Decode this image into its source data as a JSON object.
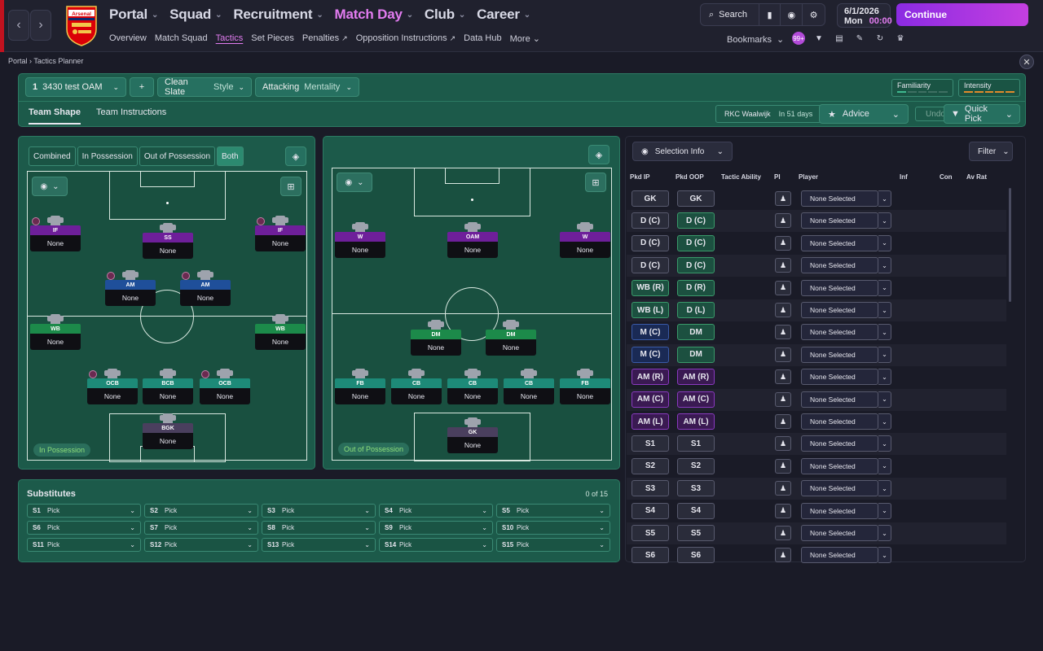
{
  "topbar": {
    "nav_back": "‹",
    "nav_forward": "›",
    "club_name": "Arsenal",
    "main_nav": [
      {
        "label": "Portal"
      },
      {
        "label": "Squad"
      },
      {
        "label": "Recruitment"
      },
      {
        "label": "Match Day"
      },
      {
        "label": "Club"
      },
      {
        "label": "Career"
      }
    ],
    "sub_nav": [
      "Overview",
      "Match Squad",
      "Tactics",
      "Set Pieces",
      "Penalties",
      "Opposition Instructions",
      "Data Hub",
      "More"
    ],
    "search_label": "Search",
    "date": "6/1/2026",
    "day": "Mon",
    "time": "00:00",
    "continue_label": "Continue",
    "bookmarks_label": "Bookmarks",
    "notifications_badge": "99+"
  },
  "breadcrumb": {
    "root": "Portal",
    "current": "Tactics Planner"
  },
  "tactic": {
    "slot_number": "1",
    "name": "3430 test OAM",
    "add": "+",
    "style_value": "Clean Slate",
    "style_label": "Style",
    "mentality_value": "Attacking",
    "mentality_label": "Mentality",
    "familiarity_label": "Familiarity",
    "intensity_label": "Intensity",
    "tabs": [
      "Team Shape",
      "Team Instructions"
    ],
    "opponent": "RKC Waalwijk",
    "opponent_when": "In 51 days",
    "advice_label": "Advice",
    "undo_label": "Undo",
    "quick_pick_label": "Quick Pick"
  },
  "in_possession": {
    "phase_buttons": [
      "Combined",
      "In Possession",
      "Out of Possession",
      "Both"
    ],
    "phase_label": "In Possession",
    "players": [
      {
        "role": "IF",
        "name": "None",
        "color": "#6e1f9a"
      },
      {
        "role": "SS",
        "name": "None",
        "color": "#6e1f9a"
      },
      {
        "role": "IF",
        "name": "None",
        "color": "#6e1f9a"
      },
      {
        "role": "AM",
        "name": "None",
        "color": "#1f4f9a"
      },
      {
        "role": "AM",
        "name": "None",
        "color": "#1f4f9a"
      },
      {
        "role": "WB",
        "name": "None",
        "color": "#1c8a4a"
      },
      {
        "role": "WB",
        "name": "None",
        "color": "#1c8a4a"
      },
      {
        "role": "OCB",
        "name": "None",
        "color": "#1d8a78"
      },
      {
        "role": "BCB",
        "name": "None",
        "color": "#1d8a78"
      },
      {
        "role": "OCB",
        "name": "None",
        "color": "#1d8a78"
      },
      {
        "role": "BGK",
        "name": "None",
        "color": "#4a3f5e"
      }
    ]
  },
  "out_of_possession": {
    "phase_label": "Out of Possession",
    "players": [
      {
        "role": "W",
        "name": "None",
        "color": "#6e1f9a"
      },
      {
        "role": "OAM",
        "name": "None",
        "color": "#6e1f9a"
      },
      {
        "role": "W",
        "name": "None",
        "color": "#6e1f9a"
      },
      {
        "role": "DM",
        "name": "None",
        "color": "#1c8a4a"
      },
      {
        "role": "DM",
        "name": "None",
        "color": "#1c8a4a"
      },
      {
        "role": "FB",
        "name": "None",
        "color": "#1d8a78"
      },
      {
        "role": "CB",
        "name": "None",
        "color": "#1d8a78"
      },
      {
        "role": "CB",
        "name": "None",
        "color": "#1d8a78"
      },
      {
        "role": "CB",
        "name": "None",
        "color": "#1d8a78"
      },
      {
        "role": "FB",
        "name": "None",
        "color": "#1d8a78"
      },
      {
        "role": "GK",
        "name": "None",
        "color": "#4a3f5e"
      }
    ]
  },
  "substitutes": {
    "title": "Substitutes",
    "count": "0 of 15",
    "slots": [
      {
        "id": "S1",
        "label": "Pick"
      },
      {
        "id": "S2",
        "label": "Pick"
      },
      {
        "id": "S3",
        "label": "Pick"
      },
      {
        "id": "S4",
        "label": "Pick"
      },
      {
        "id": "S5",
        "label": "Pick"
      },
      {
        "id": "S6",
        "label": "Pick"
      },
      {
        "id": "S7",
        "label": "Pick"
      },
      {
        "id": "S8",
        "label": "Pick"
      },
      {
        "id": "S9",
        "label": "Pick"
      },
      {
        "id": "S10",
        "label": "Pick"
      },
      {
        "id": "S11",
        "label": "Pick"
      },
      {
        "id": "S12",
        "label": "Pick"
      },
      {
        "id": "S13",
        "label": "Pick"
      },
      {
        "id": "S14",
        "label": "Pick"
      },
      {
        "id": "S15",
        "label": "Pick"
      }
    ]
  },
  "selection": {
    "selection_info_label": "Selection Info",
    "filter_label": "Filter",
    "columns": [
      "Pkd IP",
      "Pkd OOP",
      "Tactic Ability",
      "PI",
      "Player",
      "Inf",
      "Con",
      "Av Rat"
    ],
    "rows": [
      {
        "ip": "GK",
        "oop": "GK",
        "ip_color": "",
        "oop_color": "",
        "player": "None Selected"
      },
      {
        "ip": "D (C)",
        "oop": "D (C)",
        "ip_color": "",
        "oop_color": "green",
        "player": "None Selected"
      },
      {
        "ip": "D (C)",
        "oop": "D (C)",
        "ip_color": "",
        "oop_color": "green",
        "player": "None Selected"
      },
      {
        "ip": "D (C)",
        "oop": "D (C)",
        "ip_color": "",
        "oop_color": "green",
        "player": "None Selected"
      },
      {
        "ip": "WB (R)",
        "oop": "D (R)",
        "ip_color": "green",
        "oop_color": "green",
        "player": "None Selected"
      },
      {
        "ip": "WB (L)",
        "oop": "D (L)",
        "ip_color": "green",
        "oop_color": "green",
        "player": "None Selected"
      },
      {
        "ip": "M (C)",
        "oop": "DM",
        "ip_color": "blue",
        "oop_color": "green",
        "player": "None Selected"
      },
      {
        "ip": "M (C)",
        "oop": "DM",
        "ip_color": "blue",
        "oop_color": "green",
        "player": "None Selected"
      },
      {
        "ip": "AM (R)",
        "oop": "AM (R)",
        "ip_color": "purple",
        "oop_color": "purple",
        "player": "None Selected"
      },
      {
        "ip": "AM (C)",
        "oop": "AM (C)",
        "ip_color": "purple",
        "oop_color": "purple",
        "player": "None Selected"
      },
      {
        "ip": "AM (L)",
        "oop": "AM (L)",
        "ip_color": "purple",
        "oop_color": "purple",
        "player": "None Selected"
      },
      {
        "ip": "S1",
        "oop": "S1",
        "ip_color": "",
        "oop_color": "",
        "player": "None Selected"
      },
      {
        "ip": "S2",
        "oop": "S2",
        "ip_color": "",
        "oop_color": "",
        "player": "None Selected"
      },
      {
        "ip": "S3",
        "oop": "S3",
        "ip_color": "",
        "oop_color": "",
        "player": "None Selected"
      },
      {
        "ip": "S4",
        "oop": "S4",
        "ip_color": "",
        "oop_color": "",
        "player": "None Selected"
      },
      {
        "ip": "S5",
        "oop": "S5",
        "ip_color": "",
        "oop_color": "",
        "player": "None Selected"
      },
      {
        "ip": "S6",
        "oop": "S6",
        "ip_color": "",
        "oop_color": "",
        "player": "None Selected"
      }
    ]
  },
  "colors": {
    "accent": "#e27cf0",
    "continue_gradient_start": "#8b2be2",
    "continue_gradient_end": "#c43fe0",
    "panel_green": "#1c5a4a",
    "pitch_green": "#195040"
  }
}
